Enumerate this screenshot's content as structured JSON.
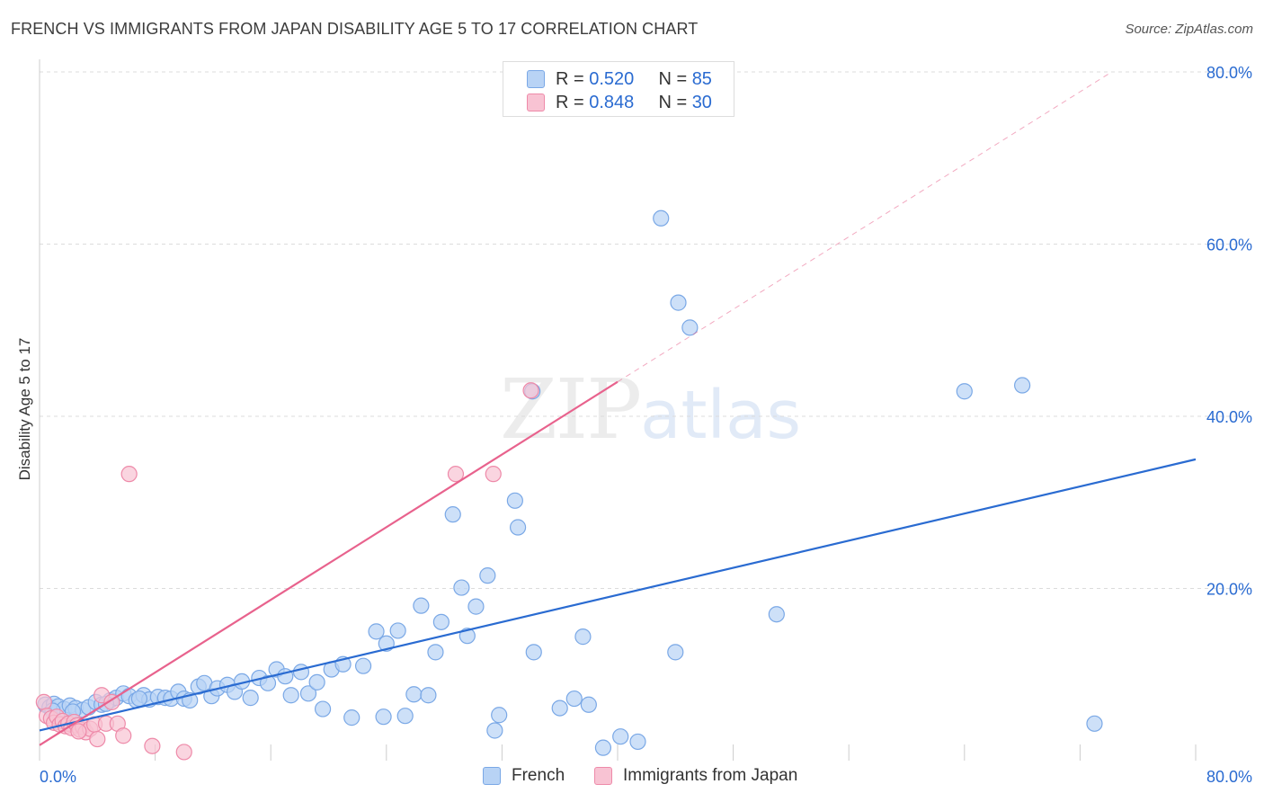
{
  "title": "FRENCH VS IMMIGRANTS FROM JAPAN DISABILITY AGE 5 TO 17 CORRELATION CHART",
  "source": "Source: ZipAtlas.com",
  "watermark": {
    "zip": "ZIP",
    "atlas": "atlas"
  },
  "colors": {
    "french_fill": "#b8d3f5",
    "french_stroke": "#7aa8e6",
    "french_line": "#2a6bd1",
    "japan_fill": "#f8c3d3",
    "japan_stroke": "#ee8aa9",
    "japan_line": "#e8628d",
    "value_text": "#2a6bd1",
    "grid": "#dcdcdc"
  },
  "legend": {
    "french": {
      "r_label": "R =",
      "r_value": "0.520",
      "n_label": "N =",
      "n_value": "85"
    },
    "japan": {
      "r_label": "R =",
      "r_value": "0.848",
      "n_label": "N =",
      "n_value": "30"
    }
  },
  "bottom_legend": {
    "french": "French",
    "japan": "Immigrants from Japan"
  },
  "chart_data": {
    "type": "scatter",
    "title": "FRENCH VS IMMIGRANTS FROM JAPAN DISABILITY AGE 5 TO 17 CORRELATION CHART",
    "xlabel": "",
    "ylabel": "Disability Age 5 to 17",
    "xlim": [
      0,
      80
    ],
    "ylim": [
      0,
      80
    ],
    "x_tick_labels": [
      "0.0%",
      "80.0%"
    ],
    "y_tick_labels": [
      "20.0%",
      "40.0%",
      "60.0%",
      "80.0%"
    ],
    "y_ticks": [
      20,
      40,
      60,
      80
    ],
    "grid": true,
    "legend_position": "top-center",
    "series": [
      {
        "name": "French",
        "r": 0.52,
        "n": 85,
        "trend": {
          "x": [
            0,
            80
          ],
          "y": [
            3.5,
            35.0
          ]
        },
        "points": [
          [
            0.4,
            6.5
          ],
          [
            0.7,
            6.2
          ],
          [
            1.0,
            6.6
          ],
          [
            1.3,
            6.3
          ],
          [
            1.7,
            6.0
          ],
          [
            2.1,
            6.4
          ],
          [
            2.5,
            6.1
          ],
          [
            3.0,
            5.9
          ],
          [
            3.4,
            6.2
          ],
          [
            3.9,
            6.8
          ],
          [
            4.3,
            6.5
          ],
          [
            4.9,
            7.0
          ],
          [
            5.3,
            7.3
          ],
          [
            5.8,
            7.8
          ],
          [
            6.2,
            7.5
          ],
          [
            6.7,
            7.0
          ],
          [
            7.2,
            7.6
          ],
          [
            7.6,
            7.1
          ],
          [
            8.2,
            7.4
          ],
          [
            8.7,
            7.3
          ],
          [
            9.1,
            7.2
          ],
          [
            9.6,
            8.0
          ],
          [
            10.0,
            7.2
          ],
          [
            10.4,
            7.0
          ],
          [
            11.0,
            8.6
          ],
          [
            11.4,
            9.0
          ],
          [
            11.9,
            7.5
          ],
          [
            12.3,
            8.4
          ],
          [
            13.0,
            8.8
          ],
          [
            13.5,
            8.0
          ],
          [
            14.0,
            9.2
          ],
          [
            14.6,
            7.3
          ],
          [
            15.2,
            9.6
          ],
          [
            15.8,
            9.0
          ],
          [
            16.4,
            10.6
          ],
          [
            17.0,
            9.8
          ],
          [
            17.4,
            7.6
          ],
          [
            18.1,
            10.3
          ],
          [
            18.6,
            7.8
          ],
          [
            19.2,
            9.1
          ],
          [
            19.6,
            6.0
          ],
          [
            20.2,
            10.6
          ],
          [
            21.0,
            11.2
          ],
          [
            21.6,
            5.0
          ],
          [
            22.4,
            11.0
          ],
          [
            23.3,
            15.0
          ],
          [
            24.0,
            13.6
          ],
          [
            24.8,
            15.1
          ],
          [
            25.3,
            5.2
          ],
          [
            25.9,
            7.7
          ],
          [
            26.4,
            18.0
          ],
          [
            26.9,
            7.6
          ],
          [
            27.4,
            12.6
          ],
          [
            27.8,
            16.1
          ],
          [
            28.6,
            28.6
          ],
          [
            29.2,
            20.1
          ],
          [
            29.6,
            14.5
          ],
          [
            30.2,
            17.9
          ],
          [
            31.0,
            21.5
          ],
          [
            31.5,
            3.5
          ],
          [
            31.8,
            5.3
          ],
          [
            32.9,
            30.2
          ],
          [
            33.1,
            27.1
          ],
          [
            34.1,
            42.9
          ],
          [
            34.2,
            12.6
          ],
          [
            36.0,
            6.1
          ],
          [
            37.0,
            7.2
          ],
          [
            37.6,
            14.4
          ],
          [
            38.0,
            6.5
          ],
          [
            39.0,
            1.5
          ],
          [
            40.2,
            2.8
          ],
          [
            41.4,
            2.2
          ],
          [
            43.0,
            63.0
          ],
          [
            44.0,
            12.6
          ],
          [
            44.2,
            53.2
          ],
          [
            45.0,
            50.3
          ],
          [
            51.0,
            17.0
          ],
          [
            64.0,
            42.9
          ],
          [
            68.0,
            43.6
          ],
          [
            73.0,
            4.3
          ],
          [
            0.9,
            5.8
          ],
          [
            2.3,
            5.7
          ],
          [
            4.6,
            6.6
          ],
          [
            6.9,
            7.2
          ],
          [
            23.8,
            5.1
          ]
        ]
      },
      {
        "name": "Immigrants from Japan",
        "r": 0.848,
        "n": 30,
        "trend": {
          "x": [
            0,
            40
          ],
          "y": [
            1.8,
            44.0
          ]
        },
        "trend_dashed": {
          "x": [
            40,
            74
          ],
          "y": [
            44.0,
            79.8
          ]
        },
        "points": [
          [
            0.3,
            6.8
          ],
          [
            0.5,
            5.2
          ],
          [
            0.8,
            4.9
          ],
          [
            1.0,
            4.4
          ],
          [
            1.2,
            5.1
          ],
          [
            1.4,
            4.2
          ],
          [
            1.6,
            4.6
          ],
          [
            1.8,
            4.0
          ],
          [
            2.0,
            4.3
          ],
          [
            2.2,
            3.8
          ],
          [
            2.4,
            4.5
          ],
          [
            2.6,
            4.1
          ],
          [
            2.8,
            3.6
          ],
          [
            3.0,
            3.9
          ],
          [
            3.2,
            3.3
          ],
          [
            3.5,
            3.7
          ],
          [
            3.8,
            4.2
          ],
          [
            4.0,
            2.5
          ],
          [
            4.3,
            7.6
          ],
          [
            4.6,
            4.3
          ],
          [
            5.0,
            6.8
          ],
          [
            5.4,
            4.3
          ],
          [
            5.8,
            2.9
          ],
          [
            6.2,
            33.3
          ],
          [
            7.8,
            1.7
          ],
          [
            10.0,
            1.0
          ],
          [
            28.8,
            33.3
          ],
          [
            31.4,
            33.3
          ],
          [
            34.0,
            43.0
          ],
          [
            2.7,
            3.4
          ]
        ]
      }
    ]
  }
}
